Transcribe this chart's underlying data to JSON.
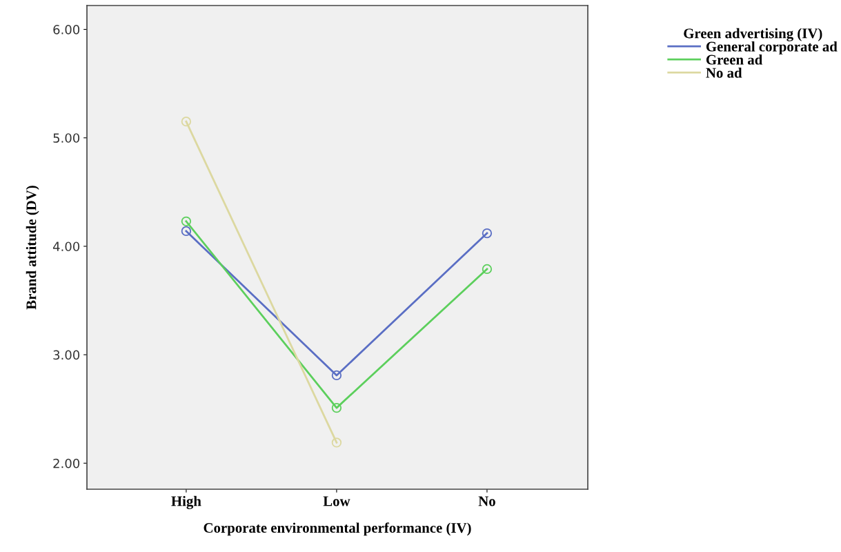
{
  "chart_data": {
    "type": "line",
    "xlabel": "Corporate environmental performance (IV)",
    "ylabel": "Brand attitude (DV)",
    "legend_title": "Green advertising (IV)",
    "categories": [
      "High",
      "Low",
      "No"
    ],
    "series": [
      {
        "name": "General corporate ad",
        "color": "#5a6ec4",
        "values": [
          4.14,
          2.81,
          4.12
        ]
      },
      {
        "name": "Green ad",
        "color": "#5ccf5c",
        "values": [
          4.23,
          2.51,
          3.79
        ]
      },
      {
        "name": "No ad",
        "color": "#dcd8a0",
        "values": [
          5.15,
          2.19,
          null
        ]
      }
    ],
    "ylim": [
      1.76,
      6.22
    ],
    "yticks": [
      {
        "value": 2,
        "label": "2.00"
      },
      {
        "value": 3,
        "label": "3.00"
      },
      {
        "value": 4,
        "label": "4.00"
      },
      {
        "value": 5,
        "label": "5.00"
      },
      {
        "value": 6,
        "label": "6.00"
      }
    ],
    "marker": "circle",
    "line_style": "solid",
    "grid": false,
    "legend": "top right"
  }
}
